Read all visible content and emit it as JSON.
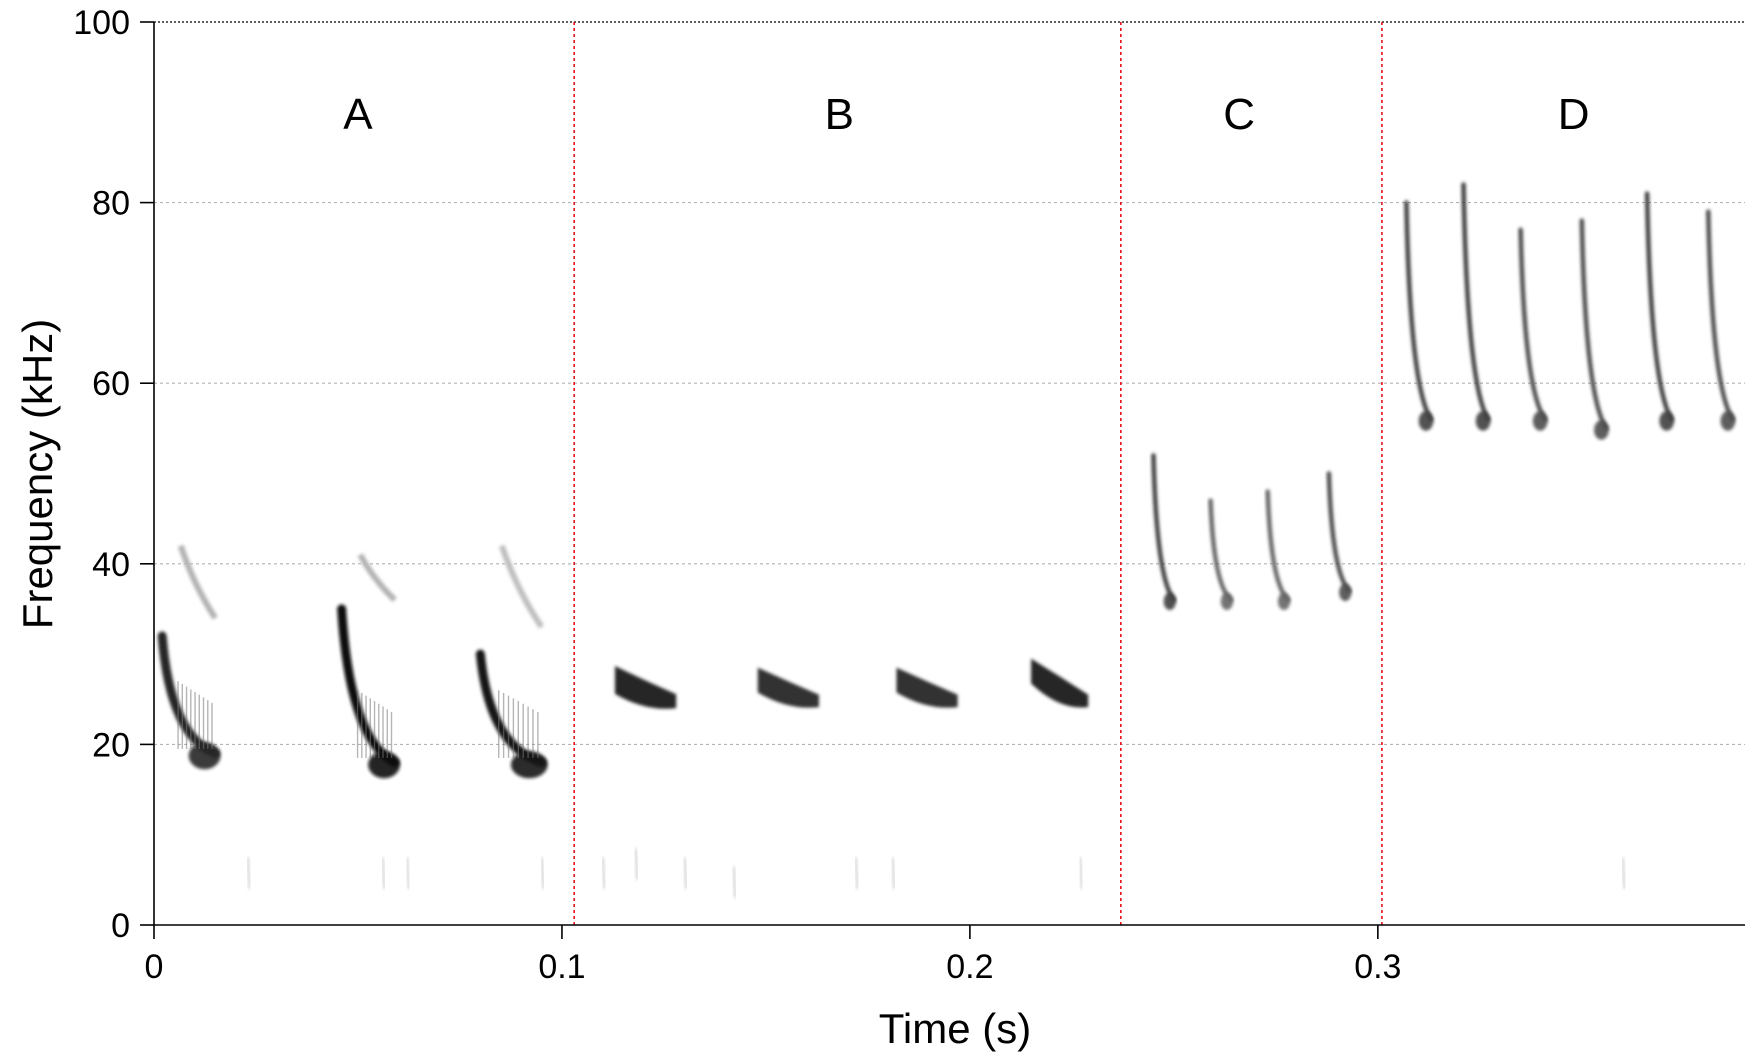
{
  "chart_data": {
    "type": "heatmap",
    "title": "",
    "xlabel": "Time (s)",
    "ylabel": "Frequency (kHz)",
    "xlim": [
      0,
      0.39
    ],
    "ylim": [
      0,
      100
    ],
    "x_ticks": [
      0,
      0.1,
      0.2,
      0.3
    ],
    "x_tick_labels": [
      "0",
      "0.1",
      "0.2",
      "0.3"
    ],
    "y_ticks": [
      0,
      20,
      40,
      60,
      80,
      100
    ],
    "y_tick_labels": [
      "0",
      "20",
      "40",
      "60",
      "80",
      "100"
    ],
    "grid": "horizontal dotted",
    "colormap": "grayscale",
    "section_dividers": [
      0.103,
      0.237,
      0.301
    ],
    "divider_color": "#e8000b",
    "sections": [
      {
        "label": "A",
        "x_center": 0.05
      },
      {
        "label": "B",
        "x_center": 0.168
      },
      {
        "label": "C",
        "x_center": 0.266
      },
      {
        "label": "D",
        "x_center": 0.348
      }
    ],
    "calls": [
      {
        "section": "A",
        "start": 0.002,
        "end": 0.015,
        "f_start": 32,
        "f_end": 19,
        "width": 2.5,
        "darkness": 0.85,
        "harmonic": {
          "f_start": 42,
          "f_end": 34,
          "darkness": 0.3
        }
      },
      {
        "section": "A",
        "start": 0.046,
        "end": 0.059,
        "f_start": 35,
        "f_end": 18,
        "width": 2.5,
        "darkness": 0.95,
        "harmonic": {
          "f_start": 41,
          "f_end": 36,
          "darkness": 0.3
        }
      },
      {
        "section": "A",
        "start": 0.08,
        "end": 0.095,
        "f_start": 30,
        "f_end": 18,
        "width": 2.5,
        "darkness": 0.9,
        "harmonic": {
          "f_start": 42,
          "f_end": 33,
          "darkness": 0.25
        }
      },
      {
        "section": "B",
        "start": 0.113,
        "end": 0.128,
        "f_start": 27,
        "f_end": 25,
        "width": 2.8,
        "darkness": 0.85
      },
      {
        "section": "B",
        "start": 0.148,
        "end": 0.163,
        "f_start": 27,
        "f_end": 25,
        "width": 2.5,
        "darkness": 0.8
      },
      {
        "section": "B",
        "start": 0.182,
        "end": 0.197,
        "f_start": 27,
        "f_end": 25,
        "width": 2.5,
        "darkness": 0.8
      },
      {
        "section": "B",
        "start": 0.215,
        "end": 0.229,
        "f_start": 28,
        "f_end": 25,
        "width": 2.5,
        "darkness": 0.85
      },
      {
        "section": "C",
        "start": 0.245,
        "end": 0.25,
        "f_start": 52,
        "f_end": 36,
        "width": 1.6,
        "darkness": 0.75
      },
      {
        "section": "C",
        "start": 0.259,
        "end": 0.264,
        "f_start": 47,
        "f_end": 36,
        "width": 1.6,
        "darkness": 0.6
      },
      {
        "section": "C",
        "start": 0.273,
        "end": 0.278,
        "f_start": 48,
        "f_end": 36,
        "width": 1.6,
        "darkness": 0.6
      },
      {
        "section": "C",
        "start": 0.288,
        "end": 0.293,
        "f_start": 50,
        "f_end": 37,
        "width": 1.6,
        "darkness": 0.7
      },
      {
        "section": "D",
        "start": 0.307,
        "end": 0.313,
        "f_start": 80,
        "f_end": 56,
        "width": 1.8,
        "darkness": 0.75
      },
      {
        "section": "D",
        "start": 0.321,
        "end": 0.327,
        "f_start": 82,
        "f_end": 56,
        "width": 1.8,
        "darkness": 0.75
      },
      {
        "section": "D",
        "start": 0.335,
        "end": 0.341,
        "f_start": 77,
        "f_end": 56,
        "width": 1.8,
        "darkness": 0.7
      },
      {
        "section": "D",
        "start": 0.35,
        "end": 0.356,
        "f_start": 78,
        "f_end": 55,
        "width": 1.8,
        "darkness": 0.7
      },
      {
        "section": "D",
        "start": 0.366,
        "end": 0.372,
        "f_start": 81,
        "f_end": 56,
        "width": 1.8,
        "darkness": 0.75
      },
      {
        "section": "D",
        "start": 0.381,
        "end": 0.387,
        "f_start": 79,
        "f_end": 56,
        "width": 1.8,
        "darkness": 0.7
      }
    ],
    "noise_specks": [
      {
        "t": 0.023,
        "f": 5
      },
      {
        "t": 0.056,
        "f": 5
      },
      {
        "t": 0.062,
        "f": 5
      },
      {
        "t": 0.095,
        "f": 5
      },
      {
        "t": 0.11,
        "f": 5
      },
      {
        "t": 0.118,
        "f": 6
      },
      {
        "t": 0.13,
        "f": 5
      },
      {
        "t": 0.142,
        "f": 4
      },
      {
        "t": 0.172,
        "f": 5
      },
      {
        "t": 0.181,
        "f": 5
      },
      {
        "t": 0.227,
        "f": 5
      },
      {
        "t": 0.36,
        "f": 5
      }
    ]
  }
}
